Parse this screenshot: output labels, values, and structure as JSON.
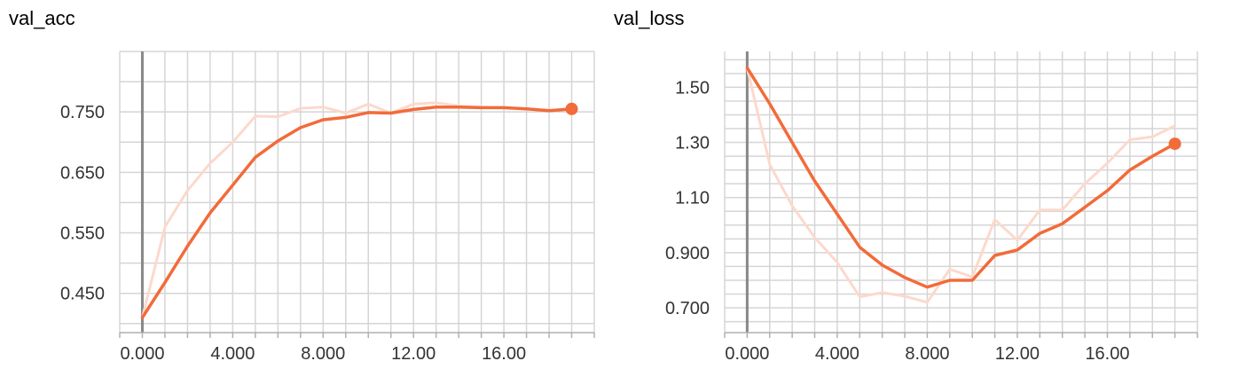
{
  "chart_data": [
    {
      "type": "line",
      "title": "val_acc",
      "xlabel": "",
      "ylabel": "",
      "xlim": [
        -1,
        20
      ],
      "ylim": [
        0.385,
        0.85
      ],
      "xticks": [
        0,
        4,
        8,
        12,
        16
      ],
      "xtick_labels": [
        "0.000",
        "4.000",
        "8.000",
        "12.00",
        "16.00"
      ],
      "yticks": [
        0.45,
        0.55,
        0.65,
        0.75
      ],
      "ytick_labels": [
        "0.450",
        "0.550",
        "0.650",
        "0.750"
      ],
      "x_grid": [
        -1,
        0,
        1,
        2,
        3,
        4,
        5,
        6,
        7,
        8,
        9,
        10,
        11,
        12,
        13,
        14,
        15,
        16,
        17,
        18,
        19,
        20
      ],
      "y_grid": [
        0.4,
        0.45,
        0.5,
        0.55,
        0.6,
        0.65,
        0.7,
        0.75,
        0.8,
        0.85
      ],
      "grid": true,
      "series": [
        {
          "role": "raw",
          "x": [
            0,
            1,
            2,
            3,
            4,
            5,
            6,
            7,
            8,
            9,
            10,
            11,
            12,
            13,
            14,
            15,
            16,
            17,
            18,
            19
          ],
          "y": [
            0.41,
            0.56,
            0.62,
            0.665,
            0.7,
            0.743,
            0.742,
            0.756,
            0.758,
            0.748,
            0.763,
            0.748,
            0.763,
            0.765,
            0.76,
            0.758,
            0.757,
            0.755,
            0.752,
            0.755
          ]
        },
        {
          "role": "smoothed",
          "x": [
            0,
            1,
            2,
            3,
            4,
            5,
            6,
            7,
            8,
            9,
            10,
            11,
            12,
            13,
            14,
            15,
            16,
            17,
            18,
            19
          ],
          "y": [
            0.41,
            0.468,
            0.528,
            0.583,
            0.629,
            0.675,
            0.702,
            0.724,
            0.737,
            0.741,
            0.749,
            0.748,
            0.754,
            0.758,
            0.758,
            0.757,
            0.757,
            0.755,
            0.752,
            0.755
          ]
        }
      ]
    },
    {
      "type": "line",
      "title": "val_loss",
      "xlabel": "",
      "ylabel": "",
      "xlim": [
        -1,
        20
      ],
      "ylim": [
        0.61,
        1.63
      ],
      "xticks": [
        0,
        4,
        8,
        12,
        16
      ],
      "xtick_labels": [
        "0.000",
        "4.000",
        "8.000",
        "12.00",
        "16.00"
      ],
      "yticks": [
        0.7,
        0.9,
        1.1,
        1.3,
        1.5
      ],
      "ytick_labels": [
        "0.700",
        "0.900",
        "1.10",
        "1.30",
        "1.50"
      ],
      "x_grid": [
        -1,
        0,
        1,
        2,
        3,
        4,
        5,
        6,
        7,
        8,
        9,
        10,
        11,
        12,
        13,
        14,
        15,
        16,
        17,
        18,
        19,
        20
      ],
      "y_grid": [
        0.6,
        0.65,
        0.7,
        0.75,
        0.8,
        0.85,
        0.9,
        0.95,
        1.0,
        1.05,
        1.1,
        1.15,
        1.2,
        1.25,
        1.3,
        1.35,
        1.4,
        1.45,
        1.5,
        1.55,
        1.6
      ],
      "grid": true,
      "series": [
        {
          "role": "raw",
          "x": [
            0,
            1,
            2,
            3,
            4,
            5,
            6,
            7,
            8,
            9,
            10,
            11,
            12,
            13,
            14,
            15,
            16,
            17,
            18,
            19
          ],
          "y": [
            1.57,
            1.22,
            1.07,
            0.955,
            0.865,
            0.74,
            0.755,
            0.742,
            0.72,
            0.84,
            0.812,
            1.02,
            0.945,
            1.055,
            1.055,
            1.15,
            1.225,
            1.31,
            1.32,
            1.36
          ]
        },
        {
          "role": "smoothed",
          "x": [
            0,
            1,
            2,
            3,
            4,
            5,
            6,
            7,
            8,
            9,
            10,
            11,
            12,
            13,
            14,
            15,
            16,
            17,
            18,
            19
          ],
          "y": [
            1.57,
            1.44,
            1.3,
            1.16,
            1.04,
            0.92,
            0.855,
            0.81,
            0.775,
            0.8,
            0.8,
            0.89,
            0.91,
            0.97,
            1.005,
            1.065,
            1.125,
            1.2,
            1.25,
            1.295
          ]
        }
      ]
    }
  ],
  "style": {
    "line_color": "#f26b3a",
    "raw_line_color": "#fcd9cc",
    "grid_color": "#d5d5d5",
    "axis_color": "#b0b0b0",
    "zero_line_color": "#888888",
    "text_color": "#333333"
  }
}
